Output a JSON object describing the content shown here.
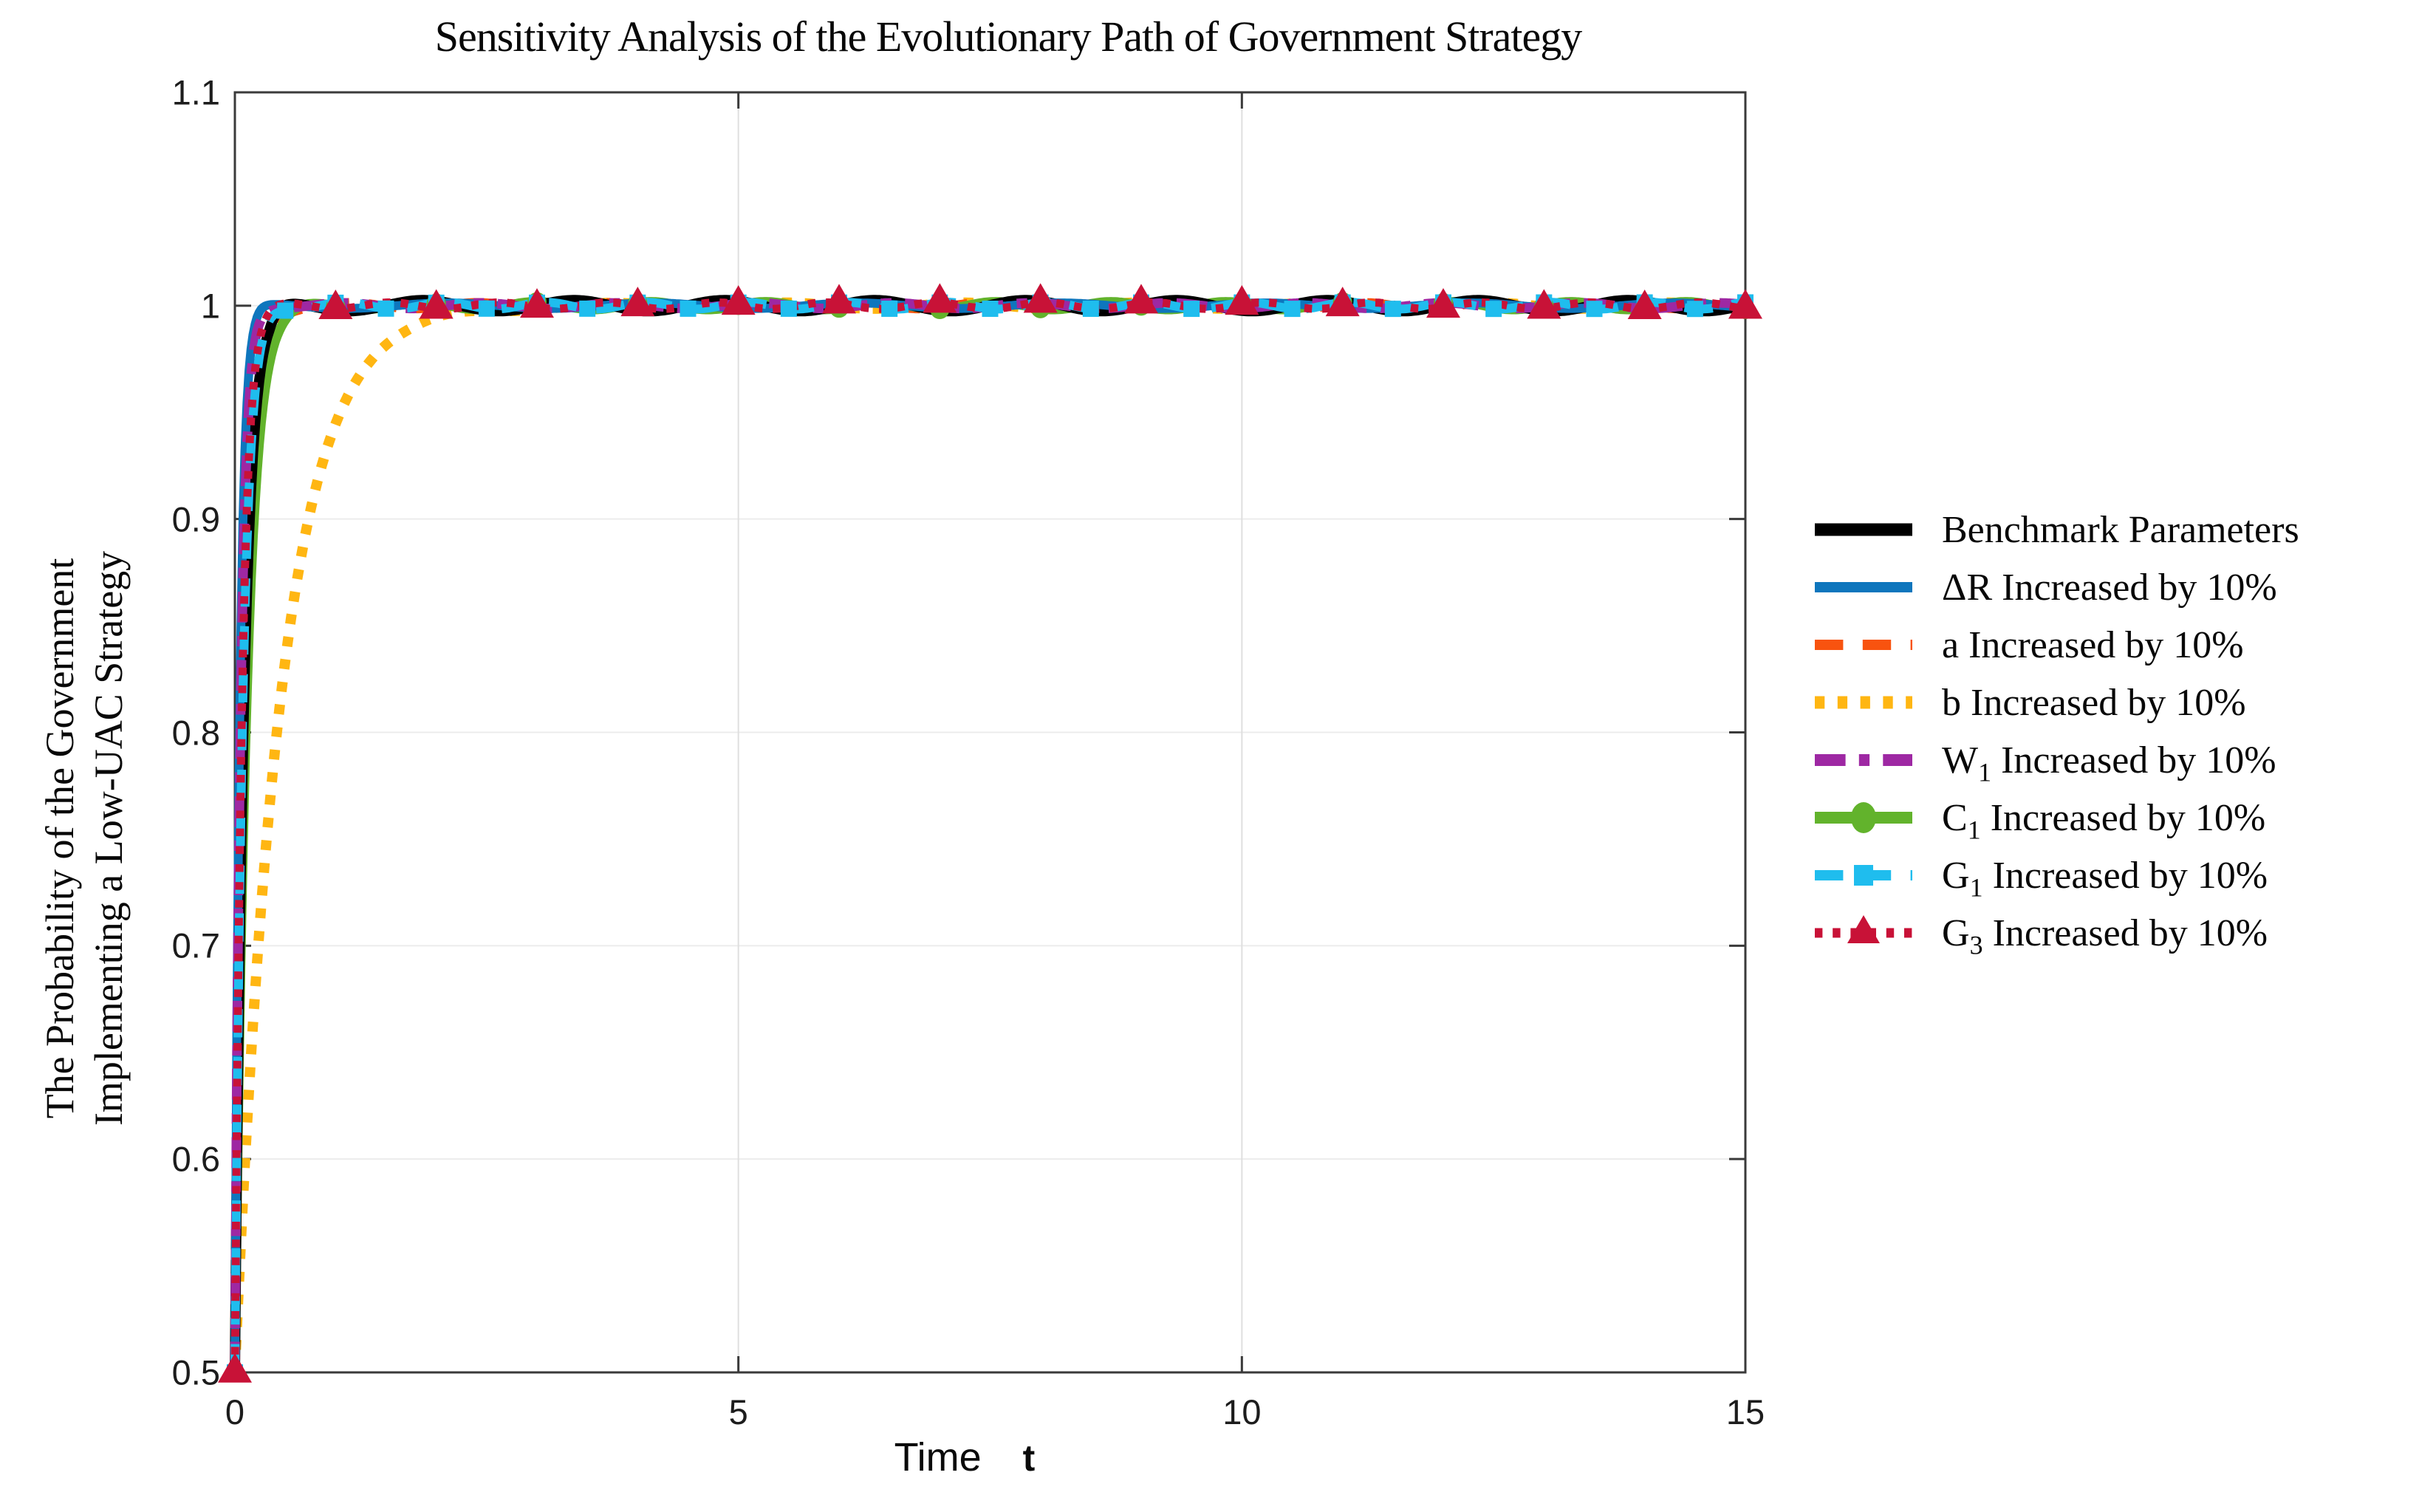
{
  "title": "Sensitivity Analysis of the Evolutionary Path of Government Strategy",
  "axes": {
    "x": {
      "label_main": "Time",
      "label_var": "t",
      "min": 0,
      "max": 15,
      "ticks": [
        {
          "value": 0,
          "label": "0"
        },
        {
          "value": 5,
          "label": "5"
        },
        {
          "value": 10,
          "label": "10"
        },
        {
          "value": 15,
          "label": "15"
        }
      ]
    },
    "y": {
      "label_line1": "The Probability of the Government",
      "label_line2": "Implementing a Low-UAC Strategy",
      "min": 0.5,
      "max": 1.1,
      "ticks": [
        {
          "value": 0.5,
          "label": "0.5"
        },
        {
          "value": 0.6,
          "label": "0.6"
        },
        {
          "value": 0.7,
          "label": "0.7"
        },
        {
          "value": 0.8,
          "label": "0.8"
        },
        {
          "value": 0.9,
          "label": "0.9"
        },
        {
          "value": 1.0,
          "label": "1"
        },
        {
          "value": 1.1,
          "label": "1.1"
        }
      ]
    }
  },
  "chart_data": {
    "type": "line",
    "title": "Sensitivity Analysis of the Evolutionary Path of Government Strategy",
    "xlabel": "Time t",
    "ylabel": "The Probability of the Government Implementing a Low-UAC Strategy",
    "xlim": [
      0,
      15
    ],
    "ylim": [
      0.5,
      1.1
    ],
    "x_ticks": [
      0,
      5,
      10,
      15
    ],
    "y_ticks": [
      0.5,
      0.6,
      0.7,
      0.8,
      0.9,
      1.0,
      1.1
    ],
    "grid": "on",
    "legend_position": "outside-right",
    "model": "y(t) = 1 - 0.5*exp(-rate*t); every curve starts at y=0.5 at t=0 and converges to the stable equilibrium y=1, remaining at 1 until t=15",
    "series": [
      {
        "id": "benchmark",
        "name": "Benchmark Parameters",
        "label_pre": "Benchmark Parameters",
        "label_sub": "",
        "label_post": "",
        "color": "#000000",
        "line_style": "solid",
        "line_width": 14,
        "marker": "none",
        "marker_interval": 0,
        "marker_size": 0,
        "start_value": 0.5,
        "final_value": 1.0,
        "rate": 11,
        "t_reach_099": 0.36
      },
      {
        "id": "delta-r",
        "name": "ΔR Increased by 10%",
        "label_pre": "ΔR",
        "label_sub": "",
        "label_post": "  Increased by 10%",
        "color": "#0E76BD",
        "line_style": "solid",
        "line_width": 12,
        "marker": "none",
        "marker_interval": 0,
        "marker_size": 0,
        "start_value": 0.5,
        "final_value": 1.0,
        "rate": 20,
        "t_reach_099": 0.2
      },
      {
        "id": "a",
        "name": "a Increased by 10%",
        "label_pre": "a",
        "label_sub": "",
        "label_post": "  Increased by 10%",
        "color": "#F8530F",
        "line_style": "dashed",
        "line_width": 12,
        "marker": "none",
        "marker_interval": 0,
        "marker_size": 0,
        "start_value": 0.5,
        "final_value": 1.0,
        "rate": 10,
        "t_reach_099": 0.39
      },
      {
        "id": "b",
        "name": "b Increased by 10%",
        "label_pre": "b",
        "label_sub": "",
        "label_post": " Increased by 10%",
        "color": "#FFB612",
        "line_style": "dotted",
        "line_width": 14,
        "marker": "none",
        "marker_interval": 0,
        "marker_size": 0,
        "start_value": 0.5,
        "final_value": 1.0,
        "rate": 2.2,
        "t_reach_099": 1.78
      },
      {
        "id": "w1",
        "name": "W1 Increased by 10%",
        "label_pre": "W",
        "label_sub": "1",
        "label_post": " Increased by 10%",
        "color": "#9E28A3",
        "line_style": "dash-dot",
        "line_width": 13,
        "marker": "none",
        "marker_interval": 0,
        "marker_size": 0,
        "start_value": 0.5,
        "final_value": 1.0,
        "rate": 17,
        "t_reach_099": 0.23
      },
      {
        "id": "c1",
        "name": "C1 Increased by 10%",
        "label_pre": "C",
        "label_sub": "1",
        "label_post": " Increased by 10%",
        "color": "#62B32C",
        "line_style": "solid",
        "line_width": 13,
        "marker": "circle",
        "marker_interval": 1,
        "marker_size": 26,
        "start_value": 0.5,
        "final_value": 1.0,
        "rate": 8.5,
        "t_reach_099": 0.46
      },
      {
        "id": "g1",
        "name": "G1 Increased by 10%",
        "label_pre": "G",
        "label_sub": "1",
        "label_post": " Increased by 10%",
        "color": "#1FBDEE",
        "line_style": "dashed",
        "line_width": 12,
        "marker": "square",
        "marker_interval": 0.5,
        "marker_size": 22,
        "start_value": 0.5,
        "final_value": 1.0,
        "rate": 12.5,
        "t_reach_099": 0.31
      },
      {
        "id": "g3",
        "name": "G3 Increased by 10%",
        "label_pre": "G",
        "label_sub": "3",
        "label_post": " Increased by 10%",
        "color": "#C81237",
        "line_style": "dotted",
        "line_width": 11,
        "marker": "triangle-up",
        "marker_interval": 1,
        "marker_size": 46,
        "start_value": 0.5,
        "final_value": 1.0,
        "rate": 14,
        "t_reach_099": 0.28
      }
    ]
  }
}
